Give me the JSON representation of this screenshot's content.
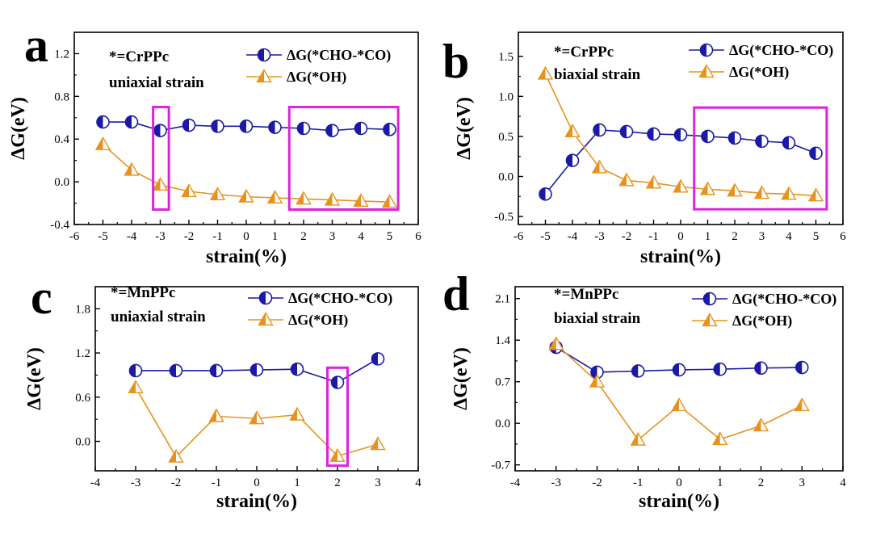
{
  "colors": {
    "series1": "#1a1aa6",
    "series2": "#e8921d",
    "highlight": "#dd22dd"
  },
  "chart_data": [
    {
      "type": "line",
      "panel": "a",
      "annotation": [
        "*=CrPPc",
        "uniaxial strain"
      ],
      "xlabel": "strain(%)",
      "ylabel": "ΔG(eV)",
      "xlim": [
        -6,
        6
      ],
      "ylim": [
        -0.4,
        1.4
      ],
      "xticks": [
        -6,
        -5,
        -4,
        -3,
        -2,
        -1,
        0,
        1,
        2,
        3,
        4,
        5,
        6
      ],
      "xtick_labels": [
        "-6",
        "-5",
        "-4",
        "-3",
        "-2",
        "-1",
        "0",
        "1",
        "2",
        "3",
        "4",
        "5",
        "6"
      ],
      "yticks": [
        -0.4,
        0.0,
        0.4,
        0.8,
        1.2
      ],
      "ytick_labels": [
        "-0.4",
        "0.0",
        "0.4",
        "0.8",
        "1.2"
      ],
      "x": [
        -5,
        -4,
        -3,
        -2,
        -1,
        0,
        1,
        2,
        3,
        4,
        5
      ],
      "series": [
        {
          "name": "ΔG(*CHO-*CO)",
          "marker": "half-circle",
          "values": [
            0.56,
            0.56,
            0.48,
            0.53,
            0.52,
            0.52,
            0.51,
            0.5,
            0.48,
            0.5,
            0.49
          ]
        },
        {
          "name": "ΔG(*OH)",
          "marker": "half-triangle",
          "values": [
            0.35,
            0.11,
            -0.03,
            -0.09,
            -0.12,
            -0.14,
            -0.15,
            -0.16,
            -0.17,
            -0.18,
            -0.19
          ]
        }
      ],
      "highlights": [
        {
          "x": [
            -3.25,
            -2.7
          ],
          "y": [
            -0.26,
            0.7
          ]
        },
        {
          "x": [
            1.5,
            5.3
          ],
          "y": [
            -0.26,
            0.7
          ]
        }
      ]
    },
    {
      "type": "line",
      "panel": "b",
      "annotation": [
        "*=CrPPc",
        "biaxial strain"
      ],
      "xlabel": "strain(%)",
      "ylabel": "ΔG(eV)",
      "xlim": [
        -6,
        6
      ],
      "ylim": [
        -0.6,
        1.8
      ],
      "xticks": [
        -6,
        -5,
        -4,
        -3,
        -2,
        -1,
        0,
        1,
        2,
        3,
        4,
        5,
        6
      ],
      "xtick_labels": [
        "-6",
        "-5",
        "-4",
        "-3",
        "-2",
        "-1",
        "0",
        "1",
        "2",
        "3",
        "4",
        "5",
        "6"
      ],
      "yticks": [
        -0.5,
        0.0,
        0.5,
        1.0,
        1.5
      ],
      "ytick_labels": [
        "-0.5",
        "0.0",
        "0.5",
        "1.0",
        "1.5"
      ],
      "x": [
        -5,
        -4,
        -3,
        -2,
        -1,
        0,
        1,
        2,
        3,
        4,
        5
      ],
      "series": [
        {
          "name": "ΔG(*CHO-*CO)",
          "marker": "half-circle",
          "values": [
            -0.22,
            0.2,
            0.58,
            0.56,
            0.53,
            0.52,
            0.5,
            0.48,
            0.44,
            0.42,
            0.29
          ]
        },
        {
          "name": "ΔG(*OH)",
          "marker": "half-triangle",
          "values": [
            1.28,
            0.56,
            0.11,
            -0.05,
            -0.08,
            -0.13,
            -0.16,
            -0.18,
            -0.21,
            -0.22,
            -0.24
          ]
        }
      ],
      "highlights": [
        {
          "x": [
            0.5,
            5.4
          ],
          "y": [
            -0.41,
            0.86
          ]
        }
      ]
    },
    {
      "type": "line",
      "panel": "c",
      "annotation": [
        "*=MnPPc",
        "uniaxial strain"
      ],
      "xlabel": "strain(%)",
      "ylabel": "ΔG(eV)",
      "xlim": [
        -4,
        4
      ],
      "ylim": [
        -0.4,
        2.1
      ],
      "xticks": [
        -4,
        -3,
        -2,
        -1,
        0,
        1,
        2,
        3,
        4
      ],
      "xtick_labels": [
        "-4",
        "-3",
        "-2",
        "-1",
        "0",
        "1",
        "2",
        "3",
        "4"
      ],
      "yticks": [
        0.0,
        0.6,
        1.2,
        1.8
      ],
      "ytick_labels": [
        "0.0",
        "0.6",
        "1.2",
        "1.8"
      ],
      "x": [
        -3,
        -2,
        -1,
        0,
        1,
        2,
        3
      ],
      "series": [
        {
          "name": "ΔG(*CHO-*CO)",
          "marker": "half-circle",
          "values": [
            0.96,
            0.96,
            0.96,
            0.97,
            0.98,
            0.8,
            1.12
          ]
        },
        {
          "name": "ΔG(*OH)",
          "marker": "half-triangle",
          "values": [
            0.73,
            -0.21,
            0.34,
            0.31,
            0.36,
            -0.2,
            -0.04
          ]
        }
      ],
      "highlights": [
        {
          "x": [
            1.75,
            2.25
          ],
          "y": [
            -0.33,
            1.0
          ]
        }
      ]
    },
    {
      "type": "line",
      "panel": "d",
      "annotation": [
        "*=MnPPc",
        "biaxial strain"
      ],
      "xlabel": "strain(%)",
      "ylabel": "ΔG(eV)",
      "xlim": [
        -4,
        4
      ],
      "ylim": [
        -0.8,
        2.3
      ],
      "xticks": [
        -4,
        -3,
        -2,
        -1,
        0,
        1,
        2,
        3,
        4
      ],
      "xtick_labels": [
        "-4",
        "-3",
        "-2",
        "-1",
        "0",
        "1",
        "2",
        "3",
        "4"
      ],
      "yticks": [
        -0.7,
        0.0,
        0.7,
        1.4,
        2.1
      ],
      "ytick_labels": [
        "-0.7",
        "0.0",
        "0.7",
        "1.4",
        "2.1"
      ],
      "x": [
        -3,
        -2,
        -1,
        0,
        1,
        2,
        3
      ],
      "series": [
        {
          "name": "ΔG(*CHO-*CO)",
          "marker": "half-circle",
          "values": [
            1.28,
            0.86,
            0.88,
            0.9,
            0.91,
            0.93,
            0.94
          ]
        },
        {
          "name": "ΔG(*OH)",
          "marker": "half-triangle",
          "values": [
            1.33,
            0.7,
            -0.28,
            0.3,
            -0.27,
            -0.04,
            0.3
          ]
        }
      ],
      "highlights": []
    }
  ]
}
